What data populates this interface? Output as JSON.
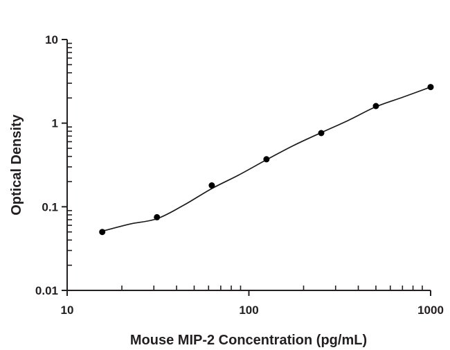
{
  "figure": {
    "background": "#ffffff"
  },
  "chart_data": {
    "type": "scatter",
    "title": "",
    "xlabel": "Mouse MIP-2 Concentration (pg/mL)",
    "ylabel": "Optical Density",
    "x_scale": "log",
    "y_scale": "log",
    "xlim": [
      10,
      1000
    ],
    "ylim": [
      0.01,
      10
    ],
    "grid": false,
    "legend_position": "none",
    "x_ticks": [
      {
        "value": 10,
        "label": "10"
      },
      {
        "value": 100,
        "label": "100"
      },
      {
        "value": 1000,
        "label": "1000"
      }
    ],
    "y_ticks": [
      {
        "value": 0.01,
        "label": "0.01"
      },
      {
        "value": 0.1,
        "label": "0.1"
      },
      {
        "value": 1,
        "label": "1"
      },
      {
        "value": 10,
        "label": "10"
      }
    ],
    "series": [
      {
        "name": "standard-points",
        "type": "scatter",
        "x": [
          15.6,
          31.2,
          62.5,
          125,
          250,
          500,
          1000
        ],
        "y": [
          0.05,
          0.075,
          0.18,
          0.37,
          0.76,
          1.6,
          2.7
        ]
      },
      {
        "name": "fit-curve",
        "type": "line",
        "x": [
          15.6,
          22,
          31.25,
          44,
          62.5,
          88,
          125,
          176,
          250,
          353,
          500,
          707,
          1000
        ],
        "y": [
          0.051,
          0.062,
          0.072,
          0.105,
          0.165,
          0.24,
          0.365,
          0.54,
          0.77,
          1.08,
          1.57,
          2.05,
          2.7
        ]
      }
    ],
    "colors": {
      "axis": "#231f20",
      "ticks": "#231f20",
      "points": "#000000",
      "curve": "#1a1a1a",
      "text": "#231f20"
    }
  }
}
